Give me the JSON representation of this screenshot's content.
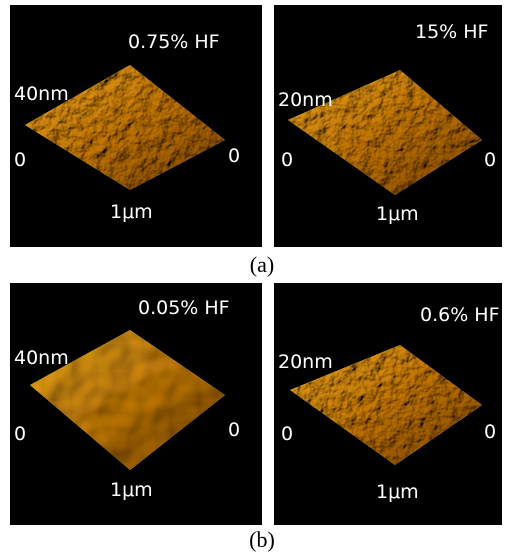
{
  "panels": [
    {
      "label": "0.75% HF",
      "z_scale": "40nm",
      "origin_left": "0",
      "origin_right": "0",
      "x_scale": "1μm"
    },
    {
      "label": "15% HF",
      "z_scale": "20nm",
      "origin_left": "0",
      "origin_right": "0",
      "x_scale": "1μm"
    },
    {
      "label": "0.05% HF",
      "z_scale": "40nm",
      "origin_left": "0",
      "origin_right": "0",
      "x_scale": "1μm"
    },
    {
      "label": "0.6% HF",
      "z_scale": "20nm",
      "origin_left": "0",
      "origin_right": "0",
      "x_scale": "1μm"
    }
  ],
  "captions": [
    "(a)",
    "(b)"
  ]
}
